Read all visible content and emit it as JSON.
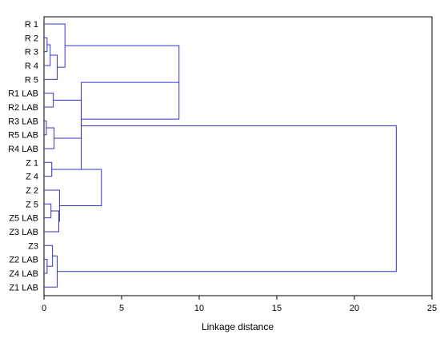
{
  "chart_data": {
    "type": "dendrogram",
    "orientation": "horizontal",
    "title": "",
    "xlabel": "Linkage distance",
    "xlim": [
      0,
      25
    ],
    "x_ticks": [
      0,
      5,
      10,
      15,
      20,
      25
    ],
    "grid": false,
    "line_color": "#3333cc",
    "leaves": [
      "R 1",
      "R 2",
      "R 3",
      "R 4",
      "R 5",
      "R1 LAB",
      "R2 LAB",
      "R3 LAB",
      "R5 LAB",
      "R4 LAB",
      "Z 1",
      "Z 4",
      "Z 2",
      "Z 5",
      "Z5 LAB",
      "Z3 LAB",
      "Z3",
      "Z2 LAB",
      "Z4 LAB",
      "Z1 LAB"
    ],
    "merges": [
      {
        "left": "R 2",
        "right": "R 3",
        "distance": 0.2
      },
      {
        "left": "R 2 + R 3",
        "right": "R 4",
        "distance": 0.4
      },
      {
        "left": "R 2 + R 3 + R 4",
        "right": "R 5",
        "distance": 0.85
      },
      {
        "left": "R 1",
        "right": "R 2 + R 3 + R 4 + R 5",
        "distance": 1.35
      },
      {
        "left": "R1 LAB",
        "right": "R2 LAB",
        "distance": 0.6
      },
      {
        "left": "R3 LAB",
        "right": "R5 LAB",
        "distance": 0.15
      },
      {
        "left": "R3 LAB + R5 LAB",
        "right": "R4 LAB",
        "distance": 0.65
      },
      {
        "left": "R1 LAB + R2 LAB",
        "right": "R3 LAB + R5 LAB + R4 LAB",
        "distance": 2.4
      },
      {
        "left": "R 1 … R 5",
        "right": "R1 LAB … R4 LAB",
        "distance": 8.7
      },
      {
        "left": "Z 1",
        "right": "Z 4",
        "distance": 0.5
      },
      {
        "left": "Z 5",
        "right": "Z5 LAB",
        "distance": 0.45
      },
      {
        "left": "Z 5 + Z5 LAB",
        "right": "Z3 LAB",
        "distance": 0.95
      },
      {
        "left": "Z 2",
        "right": "Z 5 + Z5 LAB + Z3 LAB",
        "distance": 1.0
      },
      {
        "left": "Z2 LAB",
        "right": "Z4 LAB",
        "distance": 0.2
      },
      {
        "left": "Z3",
        "right": "Z2 LAB + Z4 LAB",
        "distance": 0.55
      },
      {
        "left": "Z3 + Z2 LAB + Z4 LAB",
        "right": "Z1 LAB",
        "distance": 0.85
      },
      {
        "left": "Z 2 … Z3 LAB",
        "right": "Z3 … Z1 LAB",
        "distance": 2.4
      },
      {
        "left": "Z 1 + Z 4",
        "right": "Z 2 … Z1 LAB",
        "distance": 3.7
      },
      {
        "left": "R group",
        "right": "Z group",
        "distance": 22.7
      }
    ]
  }
}
